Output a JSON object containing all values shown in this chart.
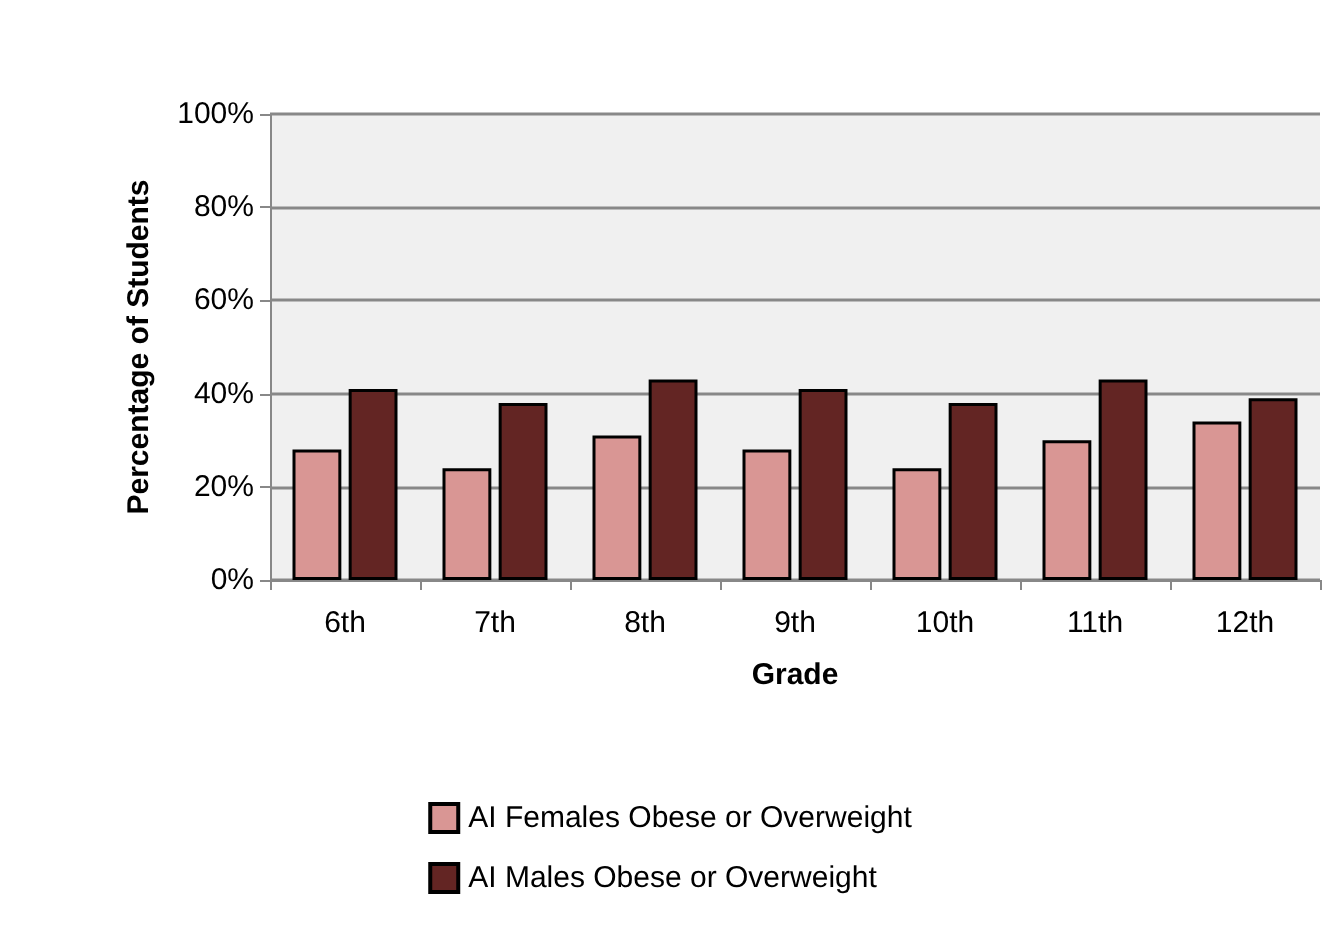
{
  "chart_data": {
    "type": "bar",
    "xlabel": "Grade",
    "ylabel": "Percentage of Students",
    "categories": [
      "6th",
      "7th",
      "8th",
      "9th",
      "10th",
      "11th",
      "12th"
    ],
    "series": [
      {
        "name": "AI Females Obese or Overweight",
        "color": "#d99694",
        "values": [
          28,
          24,
          31,
          28,
          24,
          30,
          34
        ]
      },
      {
        "name": "AI Males Obese or Overweight",
        "color": "#632523",
        "values": [
          41,
          38,
          43,
          41,
          38,
          43,
          39
        ]
      }
    ],
    "ylim": [
      0,
      100
    ],
    "yticks": [
      {
        "value": 0,
        "label": "0%"
      },
      {
        "value": 20,
        "label": "20%"
      },
      {
        "value": 40,
        "label": "40%"
      },
      {
        "value": 60,
        "label": "60%"
      },
      {
        "value": 80,
        "label": "80%"
      },
      {
        "value": 100,
        "label": "100%"
      }
    ],
    "grid": "y",
    "legend": "bottom"
  }
}
